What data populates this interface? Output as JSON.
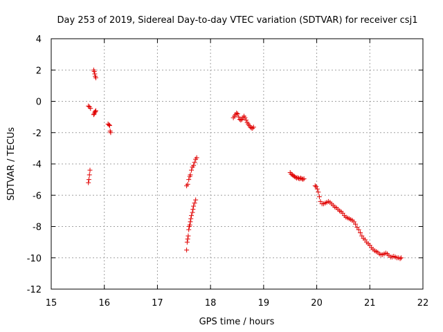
{
  "chart_data": {
    "type": "scatter",
    "title": "Day 253 of 2019, Sidereal Day-to-day VTEC variation (SDTVAR) for receiver csj1",
    "xlabel": "GPS time / hours",
    "ylabel": "SDTVAR / TECUs",
    "xlim": [
      15,
      22
    ],
    "ylim": [
      -12,
      4
    ],
    "xticks": [
      "15",
      "16",
      "17",
      "18",
      "19",
      "20",
      "21",
      "22"
    ],
    "yticks": [
      "4",
      "2",
      "0",
      "-2",
      "-4",
      "-6",
      "-8",
      "-10",
      "-12"
    ],
    "grid": true,
    "legend": "none",
    "marker": "plus",
    "color": "#e00000",
    "series": [
      {
        "name": "segment-1",
        "points": [
          [
            15.7,
            -5.2
          ],
          [
            15.71,
            -5.0
          ],
          [
            15.72,
            -4.7
          ],
          [
            15.73,
            -4.4
          ]
        ]
      },
      {
        "name": "segment-2",
        "points": [
          [
            15.7,
            -0.3
          ],
          [
            15.72,
            -0.35
          ],
          [
            15.74,
            -0.45
          ]
        ]
      },
      {
        "name": "segment-3",
        "points": [
          [
            15.8,
            2.0
          ],
          [
            15.81,
            1.9
          ],
          [
            15.82,
            1.75
          ],
          [
            15.83,
            1.6
          ],
          [
            15.84,
            1.5
          ]
        ]
      },
      {
        "name": "segment-4",
        "points": [
          [
            15.8,
            -0.85
          ],
          [
            15.81,
            -0.8
          ],
          [
            15.82,
            -0.7
          ],
          [
            15.83,
            -0.65
          ],
          [
            15.84,
            -0.6
          ]
        ]
      },
      {
        "name": "segment-5",
        "points": [
          [
            16.07,
            -1.45
          ],
          [
            16.09,
            -1.5
          ],
          [
            16.1,
            -1.55
          ],
          [
            16.11,
            -1.9
          ],
          [
            16.12,
            -2.0
          ]
        ]
      },
      {
        "name": "segment-6",
        "points": [
          [
            17.55,
            -5.4
          ],
          [
            17.57,
            -5.3
          ],
          [
            17.59,
            -5.0
          ],
          [
            17.61,
            -4.8
          ],
          [
            17.62,
            -4.7
          ],
          [
            17.64,
            -4.4
          ],
          [
            17.66,
            -4.2
          ],
          [
            17.68,
            -4.1
          ],
          [
            17.7,
            -3.9
          ],
          [
            17.72,
            -3.7
          ],
          [
            17.74,
            -3.6
          ]
        ]
      },
      {
        "name": "segment-7",
        "points": [
          [
            17.55,
            -9.5
          ],
          [
            17.56,
            -9.0
          ],
          [
            17.57,
            -8.8
          ],
          [
            17.58,
            -8.6
          ],
          [
            17.59,
            -8.2
          ],
          [
            17.6,
            -8.0
          ],
          [
            17.61,
            -7.9
          ],
          [
            17.62,
            -7.7
          ],
          [
            17.63,
            -7.5
          ],
          [
            17.64,
            -7.3
          ],
          [
            17.66,
            -7.1
          ],
          [
            17.67,
            -6.9
          ],
          [
            17.68,
            -6.7
          ],
          [
            17.7,
            -6.5
          ],
          [
            17.72,
            -6.3
          ]
        ]
      },
      {
        "name": "segment-8",
        "points": [
          [
            18.43,
            -1.05
          ],
          [
            18.45,
            -0.95
          ],
          [
            18.47,
            -0.85
          ],
          [
            18.49,
            -0.75
          ],
          [
            18.51,
            -0.8
          ],
          [
            18.53,
            -1.0
          ],
          [
            18.55,
            -1.15
          ],
          [
            18.57,
            -1.2
          ],
          [
            18.59,
            -1.15
          ],
          [
            18.61,
            -1.05
          ],
          [
            18.63,
            -0.95
          ],
          [
            18.65,
            -1.05
          ],
          [
            18.67,
            -1.2
          ],
          [
            18.69,
            -1.35
          ],
          [
            18.71,
            -1.45
          ],
          [
            18.73,
            -1.55
          ],
          [
            18.75,
            -1.65
          ],
          [
            18.77,
            -1.7
          ],
          [
            18.79,
            -1.72
          ],
          [
            18.81,
            -1.65
          ]
        ]
      },
      {
        "name": "segment-9",
        "points": [
          [
            19.5,
            -4.55
          ],
          [
            19.52,
            -4.65
          ],
          [
            19.54,
            -4.7
          ],
          [
            19.56,
            -4.75
          ],
          [
            19.58,
            -4.8
          ],
          [
            19.6,
            -4.85
          ],
          [
            19.62,
            -4.9
          ],
          [
            19.64,
            -4.88
          ],
          [
            19.66,
            -4.92
          ],
          [
            19.68,
            -4.95
          ],
          [
            19.7,
            -4.9
          ],
          [
            19.72,
            -4.95
          ],
          [
            19.74,
            -4.98
          ],
          [
            19.76,
            -4.95
          ]
        ]
      },
      {
        "name": "segment-10",
        "points": [
          [
            19.97,
            -5.4
          ],
          [
            19.99,
            -5.45
          ],
          [
            20.01,
            -5.6
          ],
          [
            20.03,
            -5.8
          ],
          [
            20.05,
            -6.1
          ],
          [
            20.07,
            -6.4
          ],
          [
            20.1,
            -6.55
          ],
          [
            20.13,
            -6.55
          ],
          [
            20.16,
            -6.5
          ],
          [
            20.19,
            -6.45
          ],
          [
            20.22,
            -6.4
          ],
          [
            20.25,
            -6.45
          ],
          [
            20.28,
            -6.55
          ],
          [
            20.31,
            -6.65
          ],
          [
            20.34,
            -6.75
          ],
          [
            20.37,
            -6.8
          ],
          [
            20.4,
            -6.9
          ],
          [
            20.43,
            -7.0
          ],
          [
            20.46,
            -7.05
          ],
          [
            20.49,
            -7.15
          ],
          [
            20.52,
            -7.3
          ],
          [
            20.55,
            -7.4
          ],
          [
            20.58,
            -7.45
          ],
          [
            20.61,
            -7.5
          ],
          [
            20.64,
            -7.55
          ],
          [
            20.67,
            -7.6
          ],
          [
            20.7,
            -7.7
          ],
          [
            20.73,
            -7.85
          ],
          [
            20.76,
            -8.05
          ],
          [
            20.79,
            -8.2
          ],
          [
            20.82,
            -8.4
          ],
          [
            20.85,
            -8.6
          ],
          [
            20.88,
            -8.75
          ],
          [
            20.91,
            -8.85
          ],
          [
            20.94,
            -9.0
          ],
          [
            20.97,
            -9.1
          ],
          [
            21.0,
            -9.2
          ],
          [
            21.03,
            -9.35
          ],
          [
            21.06,
            -9.45
          ],
          [
            21.09,
            -9.55
          ],
          [
            21.12,
            -9.6
          ],
          [
            21.15,
            -9.65
          ],
          [
            21.18,
            -9.75
          ],
          [
            21.21,
            -9.8
          ],
          [
            21.24,
            -9.8
          ],
          [
            21.27,
            -9.75
          ],
          [
            21.3,
            -9.7
          ],
          [
            21.33,
            -9.75
          ],
          [
            21.36,
            -9.85
          ],
          [
            21.39,
            -9.95
          ],
          [
            21.42,
            -9.95
          ],
          [
            21.45,
            -9.9
          ],
          [
            21.48,
            -9.95
          ],
          [
            21.51,
            -10.0
          ],
          [
            21.54,
            -10.0
          ],
          [
            21.57,
            -10.05
          ],
          [
            21.59,
            -10.0
          ]
        ]
      }
    ]
  }
}
